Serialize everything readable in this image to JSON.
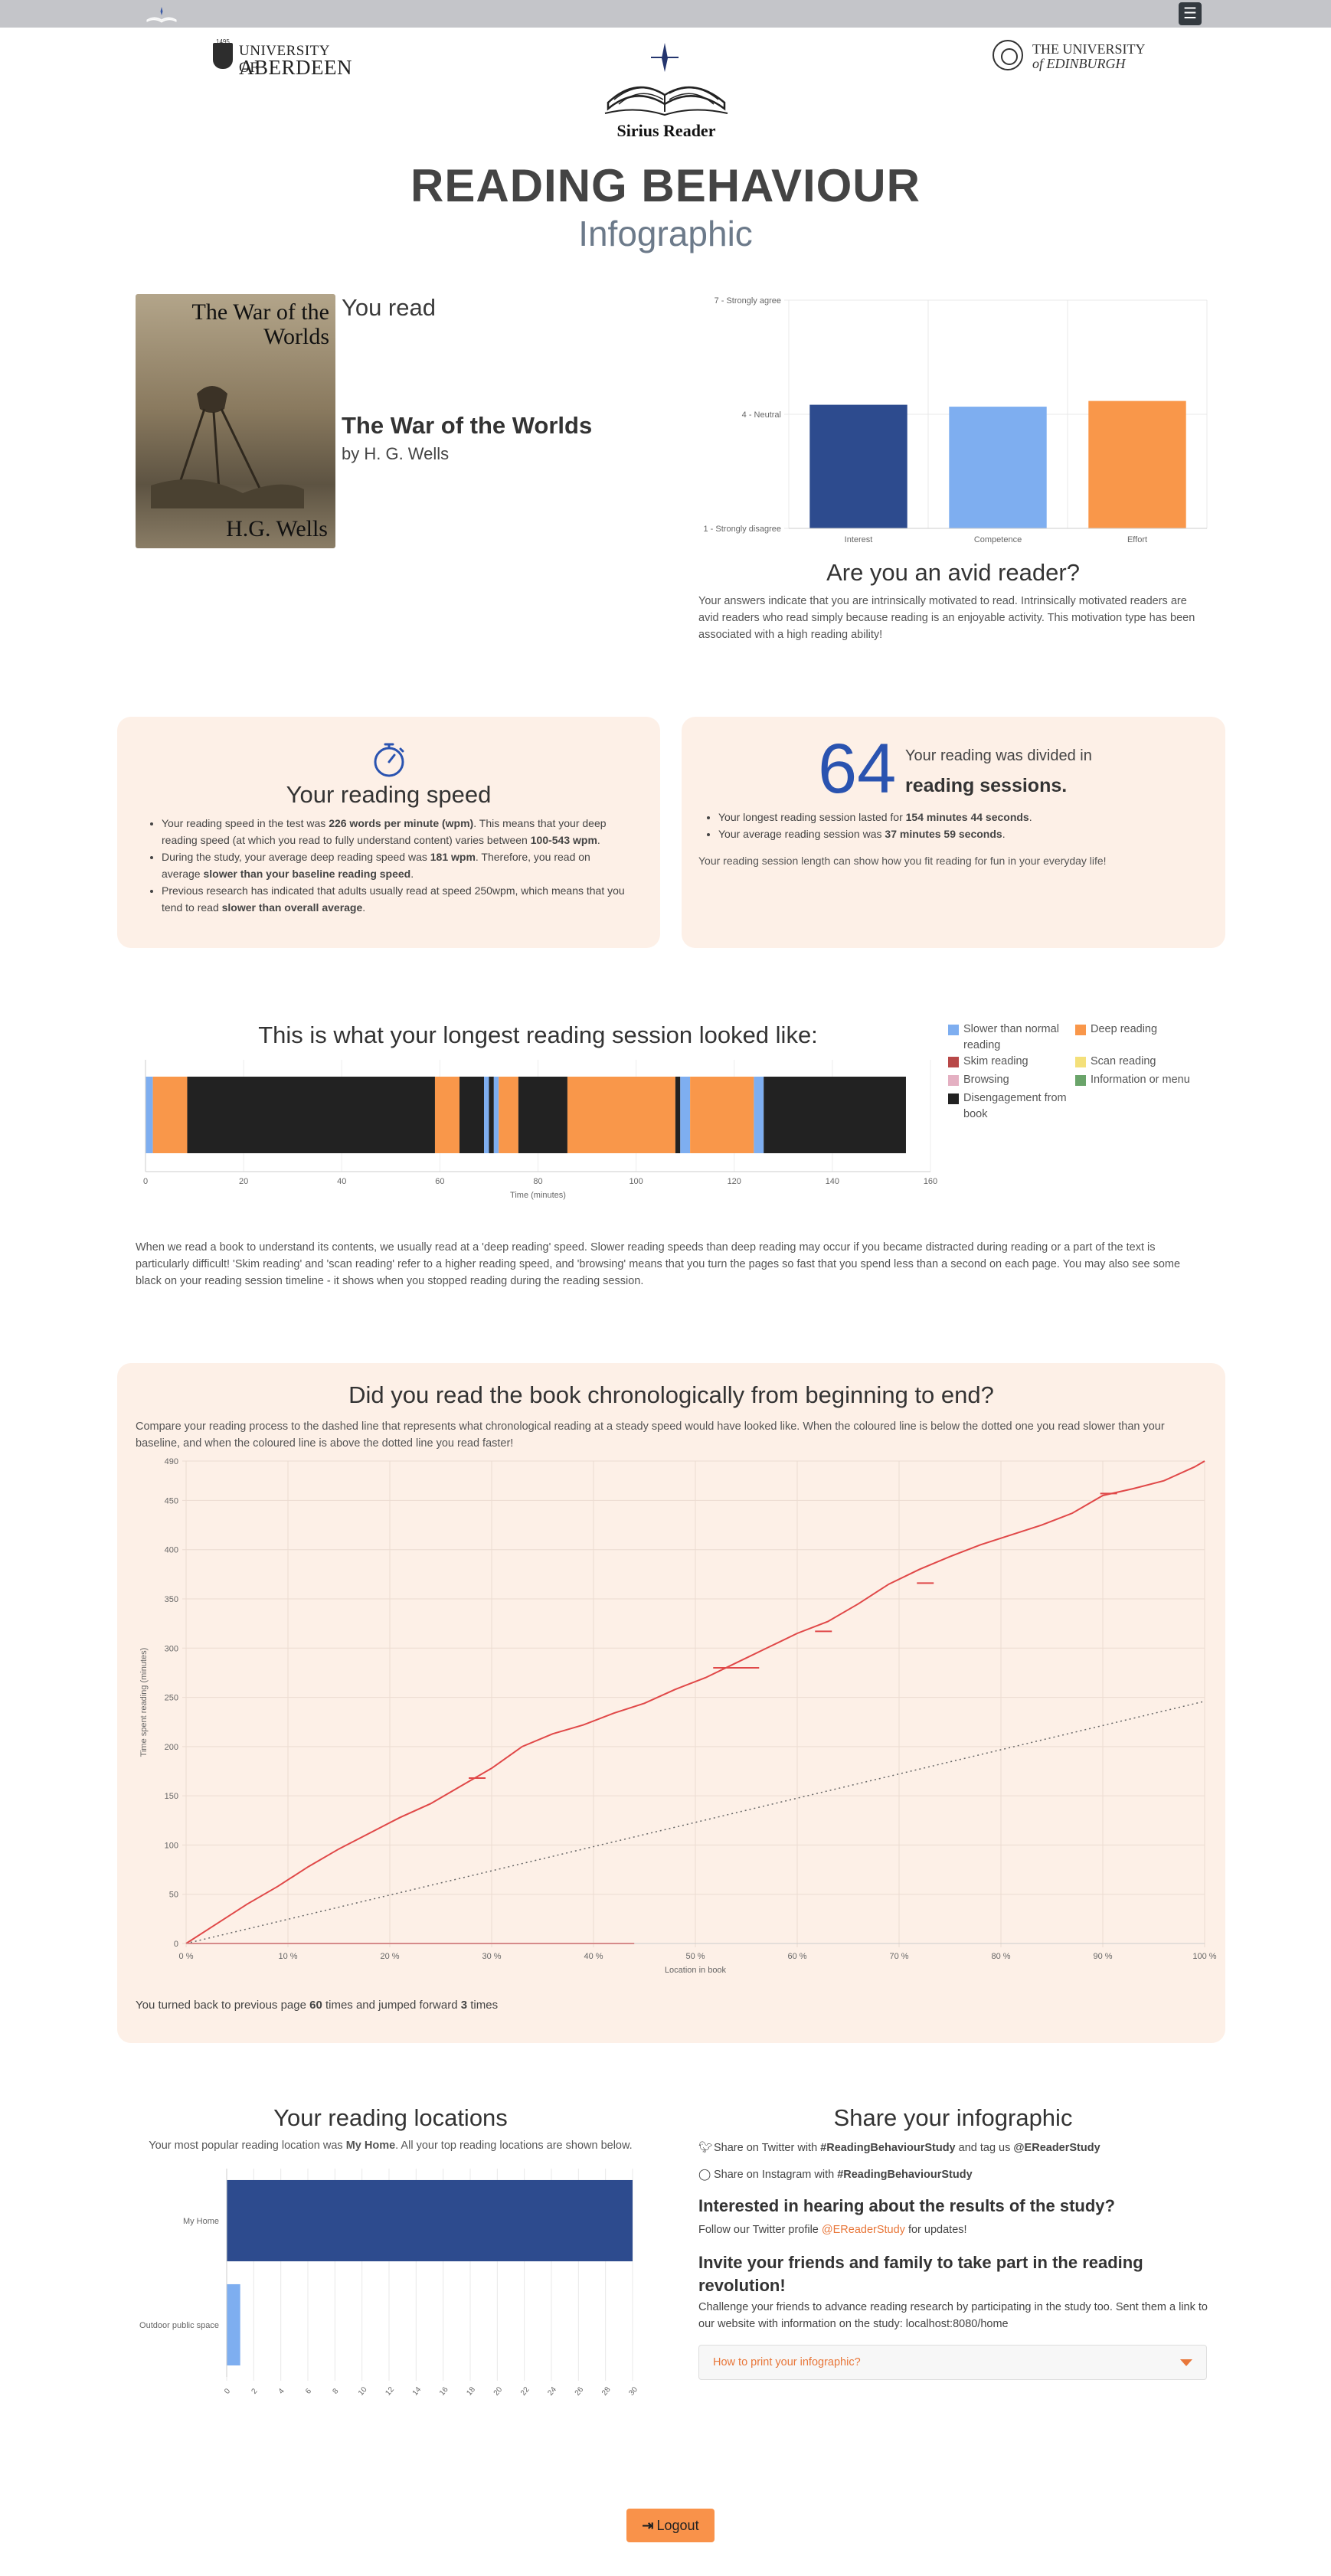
{
  "nav": {
    "menu_icon": "hamburger-icon",
    "brand_icon": "book-icon"
  },
  "logos": {
    "aberdeen": {
      "year": "1495",
      "line1": "UNIVERSITY OF",
      "line2": "ABERDEEN"
    },
    "edinburgh": {
      "line1": "THE UNIVERSITY",
      "line2": "of EDINBURGH"
    },
    "sirius": {
      "name": "Sirius Reader"
    }
  },
  "header": {
    "title": "READING BEHAVIOUR",
    "subtitle": "Infographic"
  },
  "book": {
    "you_read": "You read",
    "title": "The War of the Worlds",
    "author": "by H. G. Wells",
    "cover_title": "The War of the Worlds",
    "cover_author": "H.G. Wells"
  },
  "motivation": {
    "title": "Are you an avid reader?",
    "text": "Your answers indicate that you are intrinsically motivated to read. Intrinsically motivated readers are avid readers who read simply because reading is an enjoyable activity. This motivation type has been associated with a high reading ability!"
  },
  "speed": {
    "icon": "stopwatch-icon",
    "title": "Your reading speed",
    "b1_pre": "Your reading speed in the test was ",
    "b1_bold": "226 words per minute (wpm)",
    "b1_mid": ". This means that your deep reading speed (at which you read to fully understand content) varies between ",
    "b1_bold2": "100-543 wpm",
    "b1_post": ".",
    "b2_pre": "During the study, your average deep reading speed was ",
    "b2_bold": "181 wpm",
    "b2_mid": ". Therefore, you read on average ",
    "b2_bold2": "slower than your baseline reading speed",
    "b2_post": ".",
    "b3_pre": "Previous research has indicated that adults usually read at speed 250wpm, which means that you tend to read ",
    "b3_bold": "slower than overall average",
    "b3_post": "."
  },
  "sessions": {
    "count": "64",
    "line1": "Your reading was divided in",
    "line2": "reading sessions.",
    "b1_pre": "Your longest reading session lasted for ",
    "b1_bold": "154 minutes 44 seconds",
    "b1_post": ".",
    "b2_pre": "Your average reading session was ",
    "b2_bold": "37 minutes 59 seconds",
    "b2_post": ".",
    "note": "Your reading session length can show how you fit reading for fun in your everyday life!"
  },
  "timeline": {
    "title": "This is what your longest reading session looked like:",
    "xlabel": "Time (minutes)",
    "ticks": [
      "0",
      "20",
      "40",
      "60",
      "80",
      "100",
      "120",
      "140",
      "160"
    ],
    "legend": [
      {
        "label": "Slower than normal reading",
        "color": "#7eaef0"
      },
      {
        "label": "Deep reading",
        "color": "#f9974a"
      },
      {
        "label": "Skim reading",
        "color": "#b84848"
      },
      {
        "label": "Scan reading",
        "color": "#f4e07a"
      },
      {
        "label": "Browsing",
        "color": "#e4b0c2"
      },
      {
        "label": "Information or menu",
        "color": "#6aa46a"
      },
      {
        "label": "Disengagement from book",
        "color": "#222222"
      }
    ],
    "segments": [
      {
        "start": 0,
        "end": 1.5,
        "type": "Slower than normal reading"
      },
      {
        "start": 1.5,
        "end": 8.5,
        "type": "Deep reading"
      },
      {
        "start": 8.5,
        "end": 59,
        "type": "Disengagement from book"
      },
      {
        "start": 59,
        "end": 64,
        "type": "Deep reading"
      },
      {
        "start": 64,
        "end": 69,
        "type": "Disengagement from book"
      },
      {
        "start": 69,
        "end": 70,
        "type": "Slower than normal reading"
      },
      {
        "start": 70,
        "end": 71,
        "type": "Disengagement from book"
      },
      {
        "start": 71,
        "end": 72,
        "type": "Slower than normal reading"
      },
      {
        "start": 72,
        "end": 76,
        "type": "Deep reading"
      },
      {
        "start": 76,
        "end": 86,
        "type": "Disengagement from book"
      },
      {
        "start": 86,
        "end": 108,
        "type": "Deep reading"
      },
      {
        "start": 108,
        "end": 109,
        "type": "Disengagement from book"
      },
      {
        "start": 109,
        "end": 111,
        "type": "Slower than normal reading"
      },
      {
        "start": 111,
        "end": 124,
        "type": "Deep reading"
      },
      {
        "start": 124,
        "end": 126,
        "type": "Slower than normal reading"
      },
      {
        "start": 126,
        "end": 155,
        "type": "Disengagement from book"
      }
    ]
  },
  "explain": "When we read a book to understand its contents, we usually read at a 'deep reading' speed. Slower reading speeds than deep reading may occur if you became distracted during reading or a part of the text is particularly difficult! 'Skim reading' and 'scan reading' refer to a higher reading speed, and 'browsing' means that you turn the pages so fast that you spend less than a second on each page. You may also see some black on your reading session timeline - it shows when you stopped reading during the reading session.",
  "chrono": {
    "title": "Did you read the book chronologically from beginning to end?",
    "desc": "Compare your reading process to the dashed line that represents what chronological reading at a steady speed would have looked like. When the coloured line is below the dotted one you read slower than your baseline, and when the coloured line is above the dotted line you read faster!",
    "foot_pre": "You turned back to previous page ",
    "foot_back": "60",
    "foot_mid": " times and jumped forward ",
    "foot_fwd": "3",
    "foot_post": " times"
  },
  "locations": {
    "title": "Your reading locations",
    "desc_pre": "Your most popular reading location was ",
    "desc_bold": "My Home",
    "desc_post": ". All your top reading locations are shown below."
  },
  "share": {
    "title": "Share your infographic",
    "twitter_icon": "twitter-icon",
    "twitter_pre": "Share on Twitter with ",
    "twitter_tag": "#ReadingBehaviourStudy",
    "twitter_mid": " and tag us ",
    "twitter_handle": "@EReaderStudy",
    "instagram_icon": "instagram-icon",
    "instagram_pre": "Share on Instagram with ",
    "instagram_tag": "#ReadingBehaviourStudy",
    "interest_title": "Interested in hearing about the results of the study?",
    "interest_pre": "Follow our Twitter profile ",
    "interest_link": "@EReaderStudy",
    "interest_post": " for updates!",
    "invite_title": "Invite your friends and family to take part in the reading revolution!",
    "invite_text": "Challenge your friends to advance reading research by participating in the study too. Sent them a link to our website with information on the study: localhost:8080/home",
    "accordion": "How to print your infographic?"
  },
  "logout": {
    "label": "Logout",
    "icon": "logout-icon"
  },
  "chart_data": [
    {
      "type": "bar",
      "categories": [
        "Interest",
        "Competence",
        "Effort"
      ],
      "values": [
        4.25,
        4.2,
        4.35
      ],
      "ylim": [
        1,
        7
      ],
      "yticks": [
        {
          "value": 7,
          "label": "7 - Strongly agree"
        },
        {
          "value": 4,
          "label": "4 - Neutral"
        },
        {
          "value": 1,
          "label": "1 - Strongly disagree"
        }
      ],
      "colors": [
        "#2d4b8e",
        "#7eaef0",
        "#f9974a"
      ]
    },
    {
      "type": "line",
      "xlabel": "Location in book",
      "ylabel": "Time spent reading (minutes)",
      "xlim": [
        0,
        100
      ],
      "ylim": [
        0,
        490
      ],
      "xticks": [
        "0 %",
        "10 %",
        "20 %",
        "30 %",
        "40 %",
        "50 %",
        "60 %",
        "70 %",
        "80 %",
        "90 %",
        "100 %"
      ],
      "yticks": [
        "0",
        "50",
        "100",
        "150",
        "200",
        "250",
        "300",
        "350",
        "400",
        "450",
        "490"
      ],
      "series": [
        {
          "style": "solid",
          "color": "#e04848",
          "x": [
            0,
            3,
            6,
            9,
            12,
            15,
            18,
            21,
            24,
            27,
            30,
            33,
            36,
            39,
            42,
            45,
            48,
            51,
            54,
            57,
            60,
            63,
            66,
            69,
            72,
            75,
            78,
            81,
            84,
            87,
            90,
            93,
            96,
            99,
            100
          ],
          "y": [
            0,
            20,
            40,
            58,
            78,
            96,
            112,
            128,
            142,
            160,
            178,
            200,
            213,
            222,
            234,
            244,
            258,
            270,
            285,
            300,
            315,
            327,
            345,
            365,
            380,
            393,
            405,
            415,
            425,
            437,
            455,
            462,
            470,
            484,
            490
          ]
        },
        {
          "style": "dotted",
          "color": "#666666",
          "x": [
            0,
            100
          ],
          "y": [
            0,
            246
          ]
        },
        {
          "style": "solid",
          "color": "#e04848",
          "x": [
            0,
            44
          ],
          "y": [
            0,
            0
          ]
        }
      ],
      "jumps": [
        {
          "x": 28.5,
          "y": 168
        },
        {
          "x": 52.5,
          "y": 280
        },
        {
          "x": 62.5,
          "y": 317
        },
        {
          "x": 72.5,
          "y": 366
        },
        {
          "x": 90.5,
          "y": 457
        }
      ]
    },
    {
      "type": "bar",
      "orientation": "horizontal",
      "categories": [
        "My Home",
        "Outdoor public space"
      ],
      "values": [
        30,
        1
      ],
      "xlim": [
        0,
        30
      ],
      "xticks": [
        "0",
        "2",
        "4",
        "6",
        "8",
        "10",
        "12",
        "14",
        "16",
        "18",
        "20",
        "22",
        "24",
        "26",
        "28",
        "30"
      ],
      "colors": [
        "#2d4b8e",
        "#7eaef0"
      ]
    }
  ]
}
